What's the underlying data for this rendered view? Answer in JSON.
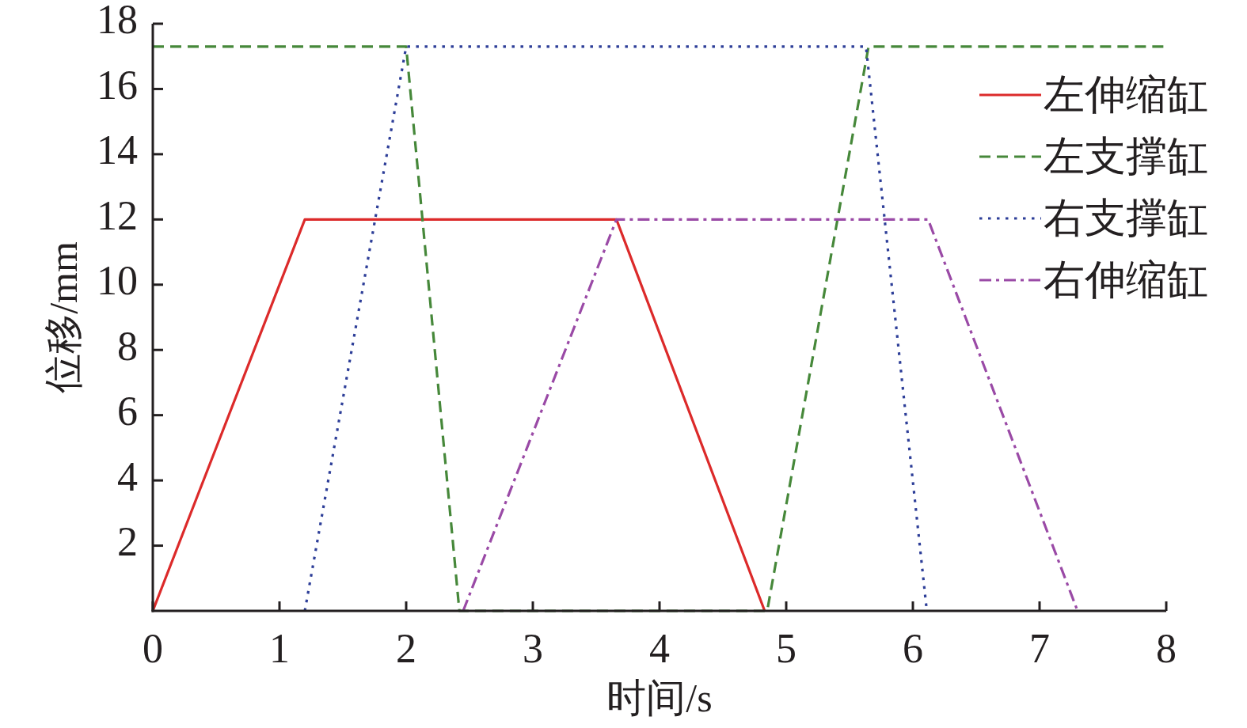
{
  "chart_data": {
    "type": "line",
    "xlabel": "时间/s",
    "ylabel": "位移/mm",
    "xlim": [
      0,
      8
    ],
    "ylim": [
      0,
      18
    ],
    "xticks": [
      0,
      1,
      2,
      3,
      4,
      5,
      6,
      7,
      8
    ],
    "yticks": [
      2,
      4,
      6,
      8,
      10,
      12,
      14,
      16,
      18
    ],
    "legend": "top right",
    "grid": false,
    "series": [
      {
        "name": "左伸缩缸",
        "color": "#dc2a2a",
        "line_style": "solid",
        "x": [
          0,
          1.2,
          3.66,
          4.83
        ],
        "values": [
          0,
          12,
          12,
          0
        ]
      },
      {
        "name": "左支撑缸",
        "color": "#46883a",
        "line_style": "dashed",
        "x": [
          0,
          2.0,
          2.42,
          4.85,
          5.65,
          8
        ],
        "values": [
          17.3,
          17.3,
          0,
          0,
          17.3,
          17.3
        ]
      },
      {
        "name": "右支撑缸",
        "color": "#2d3e98",
        "line_style": "dotted",
        "x": [
          1.2,
          2.0,
          5.63,
          6.11
        ],
        "values": [
          0,
          17.3,
          17.3,
          0
        ]
      },
      {
        "name": "右伸缩缸",
        "color": "#9a4aa6",
        "line_style": "dashdot",
        "x": [
          2.45,
          3.66,
          6.12,
          7.3
        ],
        "values": [
          0,
          12,
          12,
          0
        ]
      }
    ]
  }
}
